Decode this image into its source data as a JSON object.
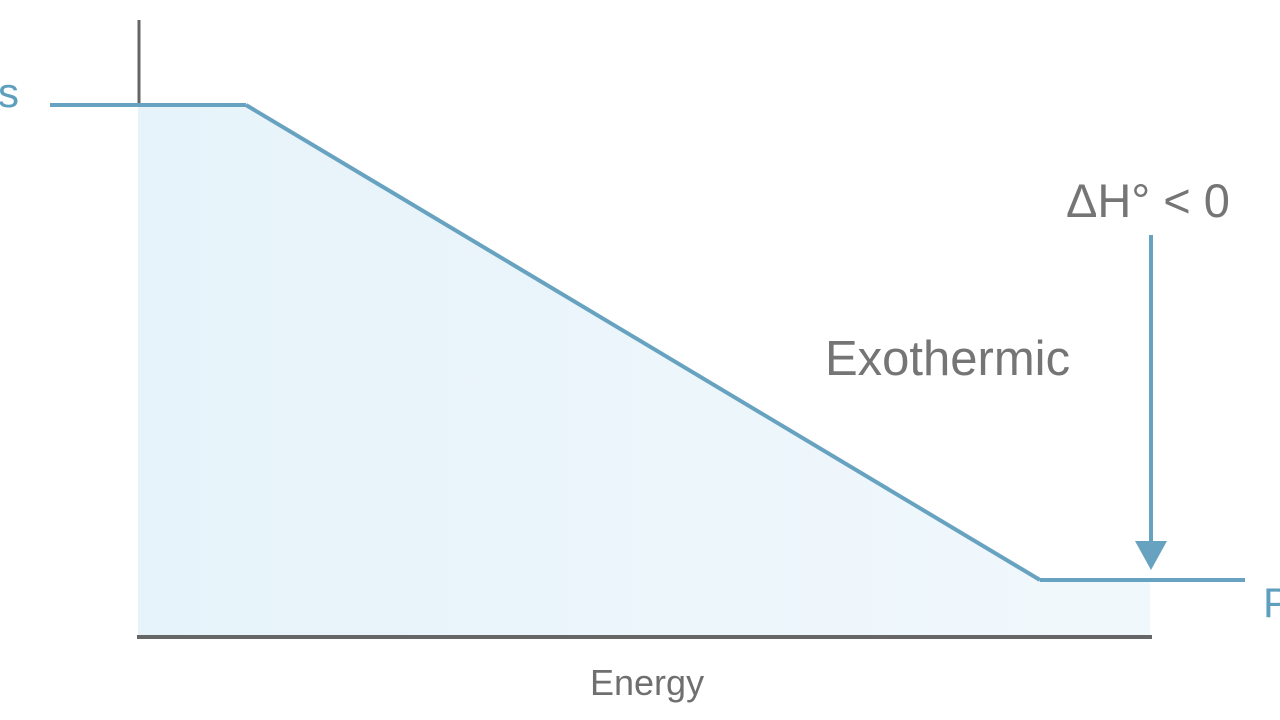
{
  "diagram": {
    "labels": {
      "reactants_fragment": "s",
      "products_fragment": "P",
      "delta_h": "ΔH° < 0",
      "reaction_type": "Exothermic",
      "axis": "Energy"
    },
    "colors": {
      "curve": "#67a3c0",
      "fill": "#eaf5fb",
      "axis": "#666666",
      "text": "#757575",
      "accent_text": "#5f9fbe"
    }
  }
}
